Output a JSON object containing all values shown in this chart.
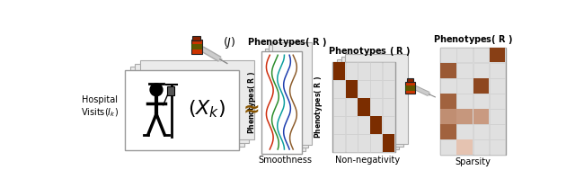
{
  "fig_width": 6.4,
  "fig_height": 2.09,
  "dpi": 100,
  "bg_color": "#ffffff",
  "hospital_label": "Hospital\nVisits($I_k$)",
  "J_label": "$(J)$",
  "approx_symbol": "≈",
  "smoothness_label": "Smoothness",
  "non_negativity_label": "Non-negativity",
  "sparsity_label": "Sparsity",
  "brown_dark": "#7B2D00",
  "brown_mid": "#A04010",
  "orange_med": "#CC6633",
  "orange_light": "#E09060",
  "peach": "#F0C0A0",
  "peach_light": "#F8DDD0",
  "grid_bg": "#E0E0E0",
  "page_bg": "#F2F2F2",
  "line_red": "#CC2200",
  "line_green": "#228822",
  "line_blue": "#1133AA",
  "line_cyan": "#009999",
  "line_brown": "#885522",
  "nn_values": [
    [
      1.0,
      0.0,
      0.0,
      0.0,
      0.0
    ],
    [
      0.0,
      1.0,
      0.0,
      0.0,
      0.0
    ],
    [
      0.0,
      0.0,
      1.0,
      0.0,
      0.0
    ],
    [
      0.0,
      0.0,
      0.0,
      1.0,
      0.0
    ],
    [
      0.0,
      0.0,
      0.0,
      0.0,
      1.0
    ]
  ],
  "sp_values": [
    [
      0.0,
      0.0,
      0.0,
      0.9
    ],
    [
      0.75,
      0.0,
      0.0,
      0.0
    ],
    [
      0.0,
      0.0,
      0.85,
      0.0
    ],
    [
      0.7,
      0.0,
      0.0,
      0.0
    ],
    [
      0.45,
      0.4,
      0.38,
      0.0
    ],
    [
      0.7,
      0.0,
      0.0,
      0.0
    ],
    [
      0.0,
      0.15,
      0.0,
      0.0
    ]
  ]
}
